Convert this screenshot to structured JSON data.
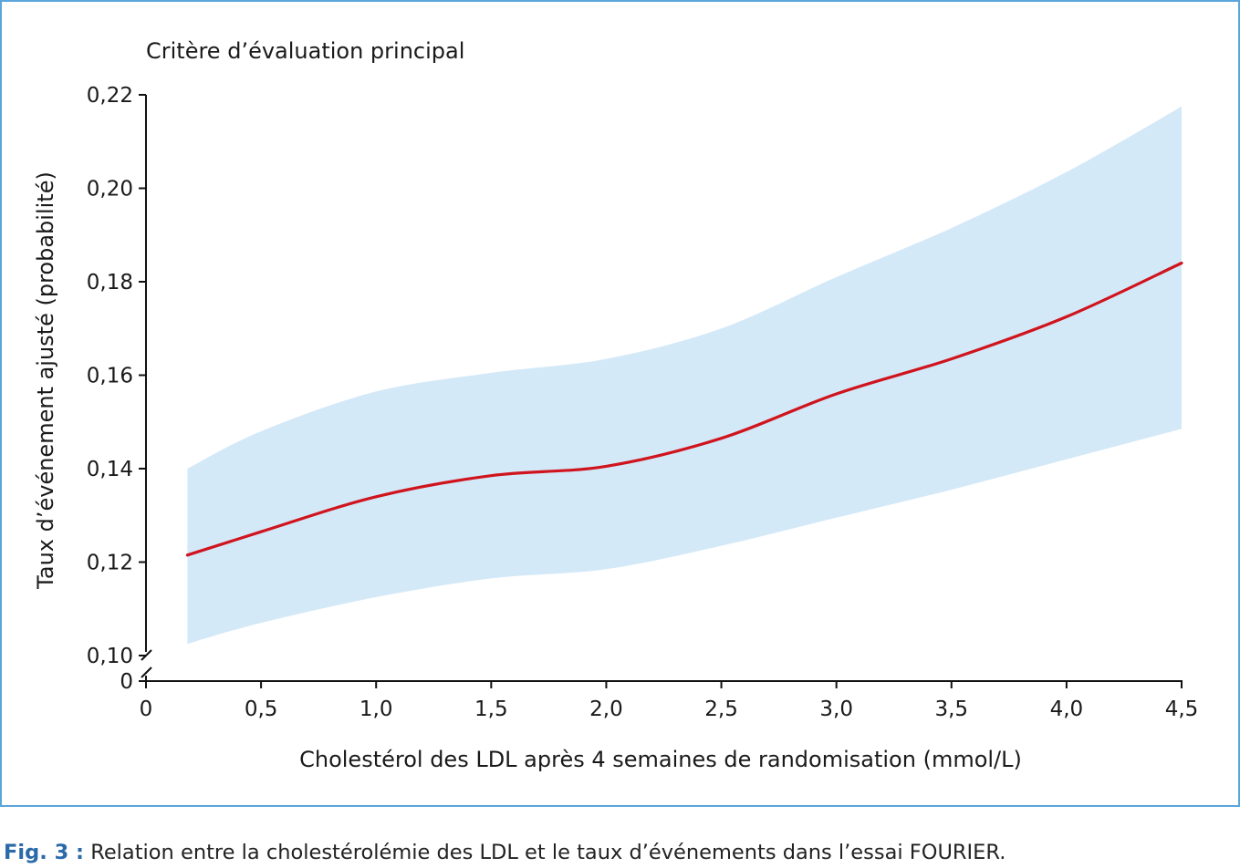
{
  "figure": {
    "caption_label": "Fig. 3 :",
    "caption_text": " Relation entre la cholestérolémie des LDL et le taux d’événements dans l’essai FOURIER."
  },
  "colors": {
    "frame_border": "#5aa6db",
    "line": "#d0141e",
    "ci_band": "#d4e9f8",
    "axis": "#111111"
  },
  "chart_data": {
    "type": "line",
    "title": "Critère d’évaluation principal",
    "xlabel": "Cholestérol des LDL après 4 semaines de randomisation (mmol/L)",
    "ylabel": "Taux d’événement ajusté (probabilité)",
    "xlim": [
      0,
      4.5
    ],
    "ylim": [
      0.1,
      0.22
    ],
    "y_axis_break": true,
    "y_origin_label": "0",
    "x_ticks": [
      0,
      0.5,
      1.0,
      1.5,
      2.0,
      2.5,
      3.0,
      3.5,
      4.0,
      4.5
    ],
    "x_tick_labels": [
      "0",
      "0,5",
      "1,0",
      "1,5",
      "2,0",
      "2,5",
      "3,0",
      "3,5",
      "4,0",
      "4,5"
    ],
    "y_ticks": [
      0.1,
      0.12,
      0.14,
      0.16,
      0.18,
      0.2,
      0.22
    ],
    "y_tick_labels": [
      "0,10",
      "0,12",
      "0,14",
      "0,16",
      "0,18",
      "0,20",
      "0,22"
    ],
    "grid": false,
    "series": [
      {
        "x": [
          0.18,
          0.5,
          1.0,
          1.5,
          2.0,
          2.5,
          3.0,
          3.5,
          4.0,
          4.5
        ],
        "y": [
          0.1215,
          0.1265,
          0.134,
          0.1385,
          0.1405,
          0.1465,
          0.156,
          0.1635,
          0.1725,
          0.184
        ],
        "ci_lower": [
          0.1025,
          0.107,
          0.1125,
          0.1165,
          0.1185,
          0.1235,
          0.1295,
          0.1355,
          0.142,
          0.1485
        ],
        "ci_upper": [
          0.14,
          0.148,
          0.1565,
          0.1605,
          0.1635,
          0.17,
          0.181,
          0.1915,
          0.2035,
          0.2175
        ]
      }
    ]
  }
}
